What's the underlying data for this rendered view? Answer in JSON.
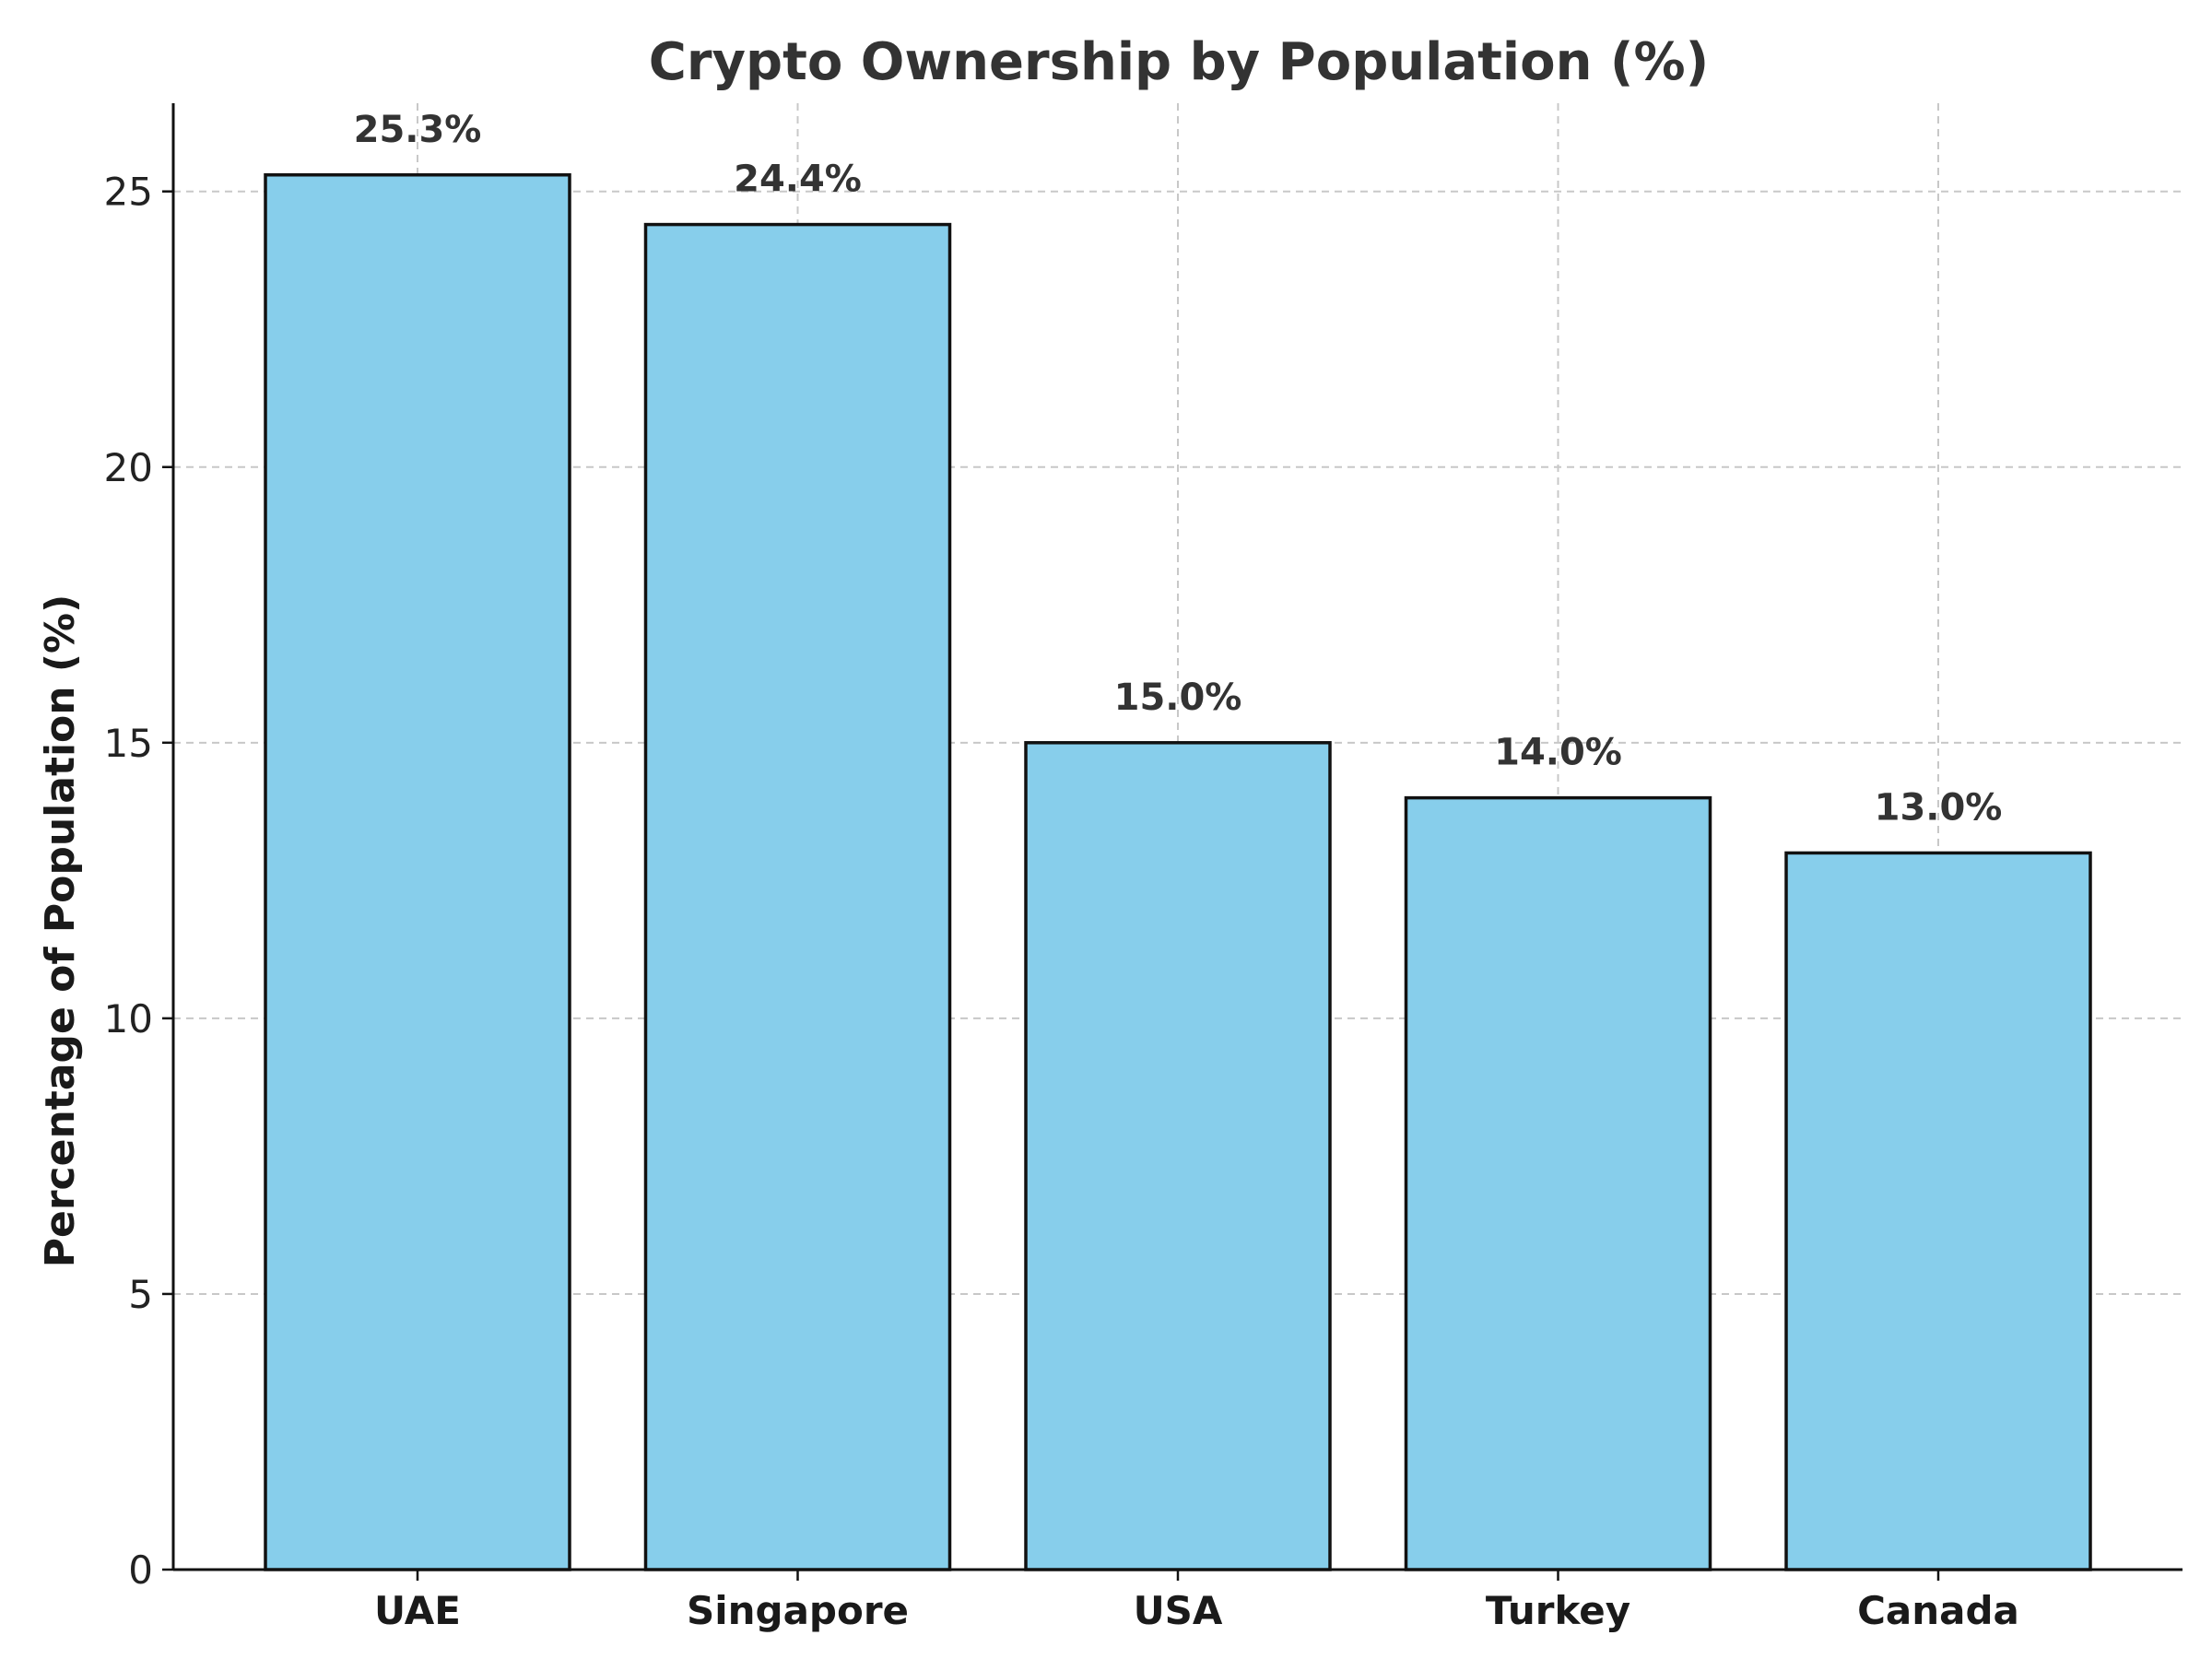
{
  "chart_data": {
    "type": "bar",
    "title": "Crypto Ownership by Population (%)",
    "xlabel": "",
    "ylabel": "Percentage of Population (%)",
    "categories": [
      "UAE",
      "Singapore",
      "USA",
      "Turkey",
      "Canada"
    ],
    "values": [
      25.3,
      24.4,
      15.0,
      14.0,
      13.0
    ],
    "value_labels": [
      "25.3%",
      "24.4%",
      "15.0%",
      "14.0%",
      "13.0%"
    ],
    "ylim": [
      0,
      26.6
    ],
    "yticks": [
      0,
      5,
      10,
      15,
      20,
      25
    ],
    "ytick_labels": [
      "0",
      "5",
      "10",
      "15",
      "20",
      "25"
    ],
    "grid": true,
    "colors": {
      "bar_fill": "#87ceeb",
      "bar_edge": "#111111",
      "grid": "#c8c8c8"
    }
  }
}
